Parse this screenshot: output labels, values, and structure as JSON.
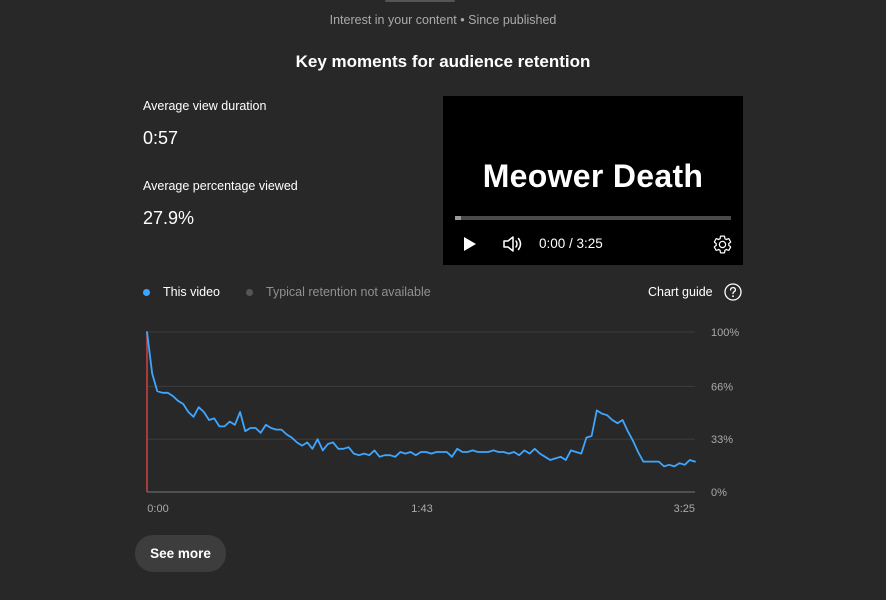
{
  "header": {
    "subtitle": "Interest in your content • Since published",
    "title": "Key moments for audience retention"
  },
  "metrics": {
    "avg_view_duration_label": "Average view duration",
    "avg_view_duration_value": "0:57",
    "avg_pct_viewed_label": "Average percentage viewed",
    "avg_pct_viewed_value": "27.9%"
  },
  "player": {
    "video_title": "Meower Death",
    "time": "0:00 / 3:25",
    "progress_fraction": 0.02
  },
  "legend": {
    "this_video": "This video",
    "typical": "Typical retention not available",
    "chart_guide": "Chart guide"
  },
  "colors": {
    "series": "#3ea6ff",
    "cursor": "#cc4444",
    "typical_dot": "#555555"
  },
  "buttons": {
    "see_more": "See more"
  },
  "chart_data": {
    "type": "line",
    "title": "Key moments for audience retention",
    "xlabel": "",
    "ylabel": "",
    "x_tick_labels": [
      "0:00",
      "1:43",
      "3:25"
    ],
    "y_tick_labels": [
      "100%",
      "66%",
      "33%",
      "0%"
    ],
    "y_ticks": [
      100,
      66,
      33,
      0
    ],
    "ylim": [
      0,
      100
    ],
    "x_range_seconds": [
      0,
      205
    ],
    "series": [
      {
        "name": "This video",
        "values": [
          100,
          74,
          63,
          62,
          62,
          60,
          57,
          55,
          50,
          47,
          53,
          50,
          45,
          46,
          41,
          41,
          44,
          42,
          50,
          38,
          40,
          40,
          37,
          42,
          40,
          39,
          39,
          36,
          34,
          31,
          29,
          31,
          27,
          33,
          26,
          30,
          31,
          27,
          27,
          28,
          24,
          23,
          24,
          23,
          26,
          22,
          23,
          23,
          22,
          25,
          24,
          25,
          23,
          25,
          25,
          24,
          25,
          25,
          25,
          22,
          27,
          25,
          25,
          26,
          25,
          25,
          25,
          26,
          25,
          25,
          24,
          25,
          23,
          26,
          24,
          27,
          24,
          22,
          20,
          21,
          22,
          20,
          26,
          25,
          24,
          34,
          35,
          51,
          49,
          48,
          45,
          43,
          45,
          38,
          32,
          25,
          19,
          19,
          19,
          19,
          16,
          17,
          16,
          18,
          17,
          20,
          19
        ]
      }
    ],
    "cursor_at_seconds": 0,
    "grid": true,
    "legend_position": "top-left"
  }
}
